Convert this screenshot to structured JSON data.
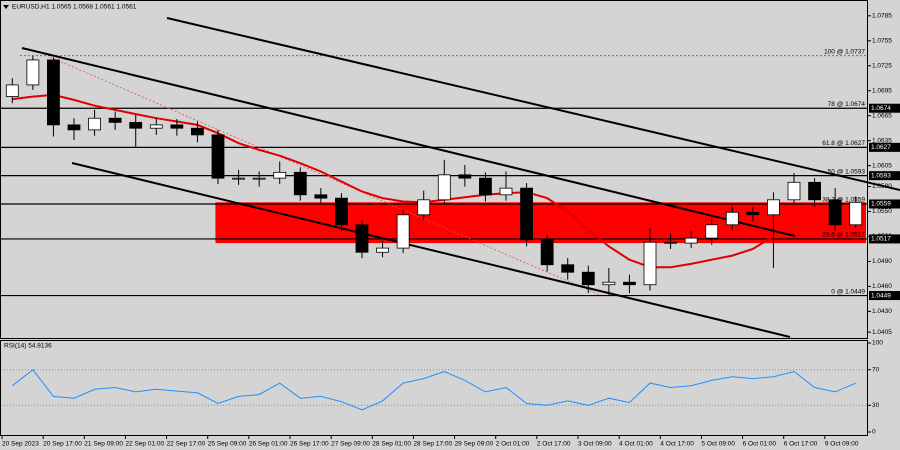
{
  "chart_data": [
    {
      "type": "candlestick",
      "title": "EURUSD,H1 1.0565 1.0568 1.0561 1.0561",
      "x": [
        4,
        12,
        20,
        28,
        36,
        44,
        52,
        60,
        68,
        76,
        84,
        92,
        100,
        108,
        116,
        124,
        132,
        140,
        148,
        156,
        164,
        172,
        180,
        188,
        196,
        204,
        212,
        220,
        228,
        236,
        244,
        252,
        260,
        268,
        276,
        284,
        292,
        300,
        308,
        316,
        324,
        332
      ],
      "open": [
        1.0688,
        1.0702,
        1.0732,
        1.0654,
        1.0648,
        1.0662,
        1.0657,
        1.065,
        1.0654,
        1.065,
        1.0642,
        1.059,
        1.059,
        1.059,
        1.0597,
        1.057,
        1.0566,
        1.0534,
        1.0501,
        1.0506,
        1.0546,
        1.0564,
        1.0594,
        1.059,
        1.057,
        1.0578,
        1.0516,
        1.0486,
        1.0477,
        1.0462,
        1.0465,
        1.0462,
        1.0513,
        1.0512,
        1.0518,
        1.0534,
        1.0549,
        1.0546,
        1.0564,
        1.0585,
        1.0564,
        1.0534
      ],
      "high": [
        1.071,
        1.0737,
        1.0735,
        1.0662,
        1.0672,
        1.067,
        1.0666,
        1.0663,
        1.0661,
        1.0658,
        1.0648,
        1.06,
        1.0598,
        1.061,
        1.0603,
        1.0578,
        1.0572,
        1.054,
        1.0515,
        1.0552,
        1.0575,
        1.0612,
        1.0606,
        1.0597,
        1.0598,
        1.0584,
        1.0522,
        1.0494,
        1.0485,
        1.0482,
        1.0474,
        1.053,
        1.0524,
        1.0527,
        1.0541,
        1.0556,
        1.0555,
        1.0573,
        1.0596,
        1.059,
        1.0578,
        1.0568
      ],
      "low": [
        1.068,
        1.0696,
        1.064,
        1.0636,
        1.0641,
        1.0648,
        1.0628,
        1.0642,
        1.0641,
        1.0633,
        1.0583,
        1.0582,
        1.058,
        1.0583,
        1.0563,
        1.0558,
        1.0526,
        1.0494,
        1.0495,
        1.05,
        1.054,
        1.0558,
        1.058,
        1.0562,
        1.0563,
        1.0508,
        1.0478,
        1.0468,
        1.0452,
        1.0449,
        1.0452,
        1.0455,
        1.0505,
        1.0506,
        1.051,
        1.0527,
        1.0538,
        1.0482,
        1.0558,
        1.0556,
        1.0527,
        1.053
      ],
      "close": [
        1.0702,
        1.0732,
        1.0654,
        1.0648,
        1.0662,
        1.0657,
        1.065,
        1.0654,
        1.065,
        1.0642,
        1.059,
        1.059,
        1.059,
        1.0597,
        1.057,
        1.0566,
        1.0534,
        1.0501,
        1.0506,
        1.0546,
        1.0564,
        1.0594,
        1.059,
        1.057,
        1.0578,
        1.0516,
        1.0486,
        1.0477,
        1.0462,
        1.0465,
        1.0462,
        1.0513,
        1.0512,
        1.0518,
        1.0534,
        1.0549,
        1.0546,
        1.0564,
        1.0585,
        1.0564,
        1.0534,
        1.0561
      ],
      "up_color": "#ffffff",
      "down_color": "#000000",
      "overlay": {
        "color": "#e00000",
        "values": [
          1.0685,
          1.0688,
          1.069,
          1.0684,
          1.0677,
          1.0672,
          1.0667,
          1.0662,
          1.0658,
          1.0654,
          1.0644,
          1.0632,
          1.0624,
          1.0617,
          1.0608,
          1.0598,
          1.0586,
          1.0574,
          1.0566,
          1.0562,
          1.0561,
          1.0564,
          1.0567,
          1.057,
          1.0572,
          1.0573,
          1.0566,
          1.055,
          1.0528,
          1.0508,
          1.0492,
          1.0483,
          1.0483,
          1.0487,
          1.0492,
          1.0497,
          1.0505,
          1.052,
          null,
          null,
          null,
          null
        ]
      },
      "zone": {
        "low": 1.0512,
        "high": 1.0561,
        "x": [
          83,
          336
        ],
        "color": "#ff0000"
      },
      "levels": [
        {
          "value": 1.0737,
          "label": "100 @ 1.0737",
          "style": "dotted"
        },
        {
          "value": 1.0674,
          "label": "78 @ 1.0674",
          "tag": "1.0674",
          "style": "solid"
        },
        {
          "value": 1.0627,
          "label": "61.8 @ 1.0627",
          "tag": "1.0627",
          "style": "solid"
        },
        {
          "value": 1.0593,
          "label": "50 @ 1.0593",
          "tag": "1.0593",
          "style": "solid"
        },
        {
          "value": 1.0559,
          "label": "38.2 @ 1.0559",
          "tag": "1.0559",
          "style": "solid"
        },
        {
          "value": 1.0517,
          "label": "23.6 @ 1.0517",
          "tag": "1.0517",
          "style": "solid"
        },
        {
          "value": 1.0449,
          "label": "0 @ 1.0449",
          "tag": "1.0449",
          "style": "solid"
        }
      ],
      "xlim": [
        0,
        336
      ],
      "ylim": [
        1.0398,
        1.0804
      ],
      "yticks": [
        {
          "value": 1.0785,
          "label": "1.0785"
        },
        {
          "value": 1.0755,
          "label": "1.0755"
        },
        {
          "value": 1.0725,
          "label": "1.0725"
        },
        {
          "value": 1.0695,
          "label": "1.0695"
        },
        {
          "value": 1.0665,
          "label": "1.0665"
        },
        {
          "value": 1.0635,
          "label": "1.0635"
        },
        {
          "value": 1.0605,
          "label": "1.0605"
        },
        {
          "value": 1.058,
          "label": "1.0580"
        },
        {
          "value": 1.055,
          "label": "1.0550"
        },
        {
          "value": 1.052,
          "label": "1.0520"
        },
        {
          "value": 1.049,
          "label": "1.0490"
        },
        {
          "value": 1.046,
          "label": "1.0460"
        },
        {
          "value": 1.043,
          "label": "1.0430"
        },
        {
          "value": 1.0405,
          "label": "1.0405"
        }
      ]
    },
    {
      "type": "line",
      "title": "RSI(14) 54.8136",
      "color": "#1e90ff",
      "x": [
        4,
        12,
        20,
        28,
        36,
        44,
        52,
        60,
        68,
        76,
        84,
        92,
        100,
        108,
        116,
        124,
        132,
        140,
        148,
        156,
        164,
        172,
        180,
        188,
        196,
        204,
        212,
        220,
        228,
        236,
        244,
        252,
        260,
        268,
        276,
        284,
        292,
        300,
        308,
        316,
        324,
        332
      ],
      "values": [
        52,
        70,
        40,
        38,
        48,
        50,
        45,
        48,
        46,
        44,
        32,
        40,
        42,
        55,
        38,
        40,
        34,
        25,
        35,
        55,
        60,
        68,
        58,
        45,
        50,
        32,
        30,
        35,
        30,
        38,
        33,
        55,
        50,
        52,
        58,
        62,
        60,
        62,
        68,
        50,
        45,
        54.81
      ],
      "xlim": [
        0,
        336
      ],
      "ylim": [
        0,
        100
      ],
      "yticks": [
        100,
        70,
        30,
        0
      ],
      "grid": true,
      "xticks": [
        {
          "value": 0,
          "label": "20 Sep 2023"
        },
        {
          "value": 16,
          "label": "20 Sep 17:00"
        },
        {
          "value": 32,
          "label": "21 Sep 09:00"
        },
        {
          "value": 48,
          "label": "22 Sep 01:00"
        },
        {
          "value": 64,
          "label": "22 Sep 17:00"
        },
        {
          "value": 80,
          "label": "25 Sep 09:00"
        },
        {
          "value": 96,
          "label": "26 Sep 01:00"
        },
        {
          "value": 112,
          "label": "26 Sep 17:00"
        },
        {
          "value": 128,
          "label": "27 Sep 09:00"
        },
        {
          "value": 144,
          "label": "28 Sep 01:00"
        },
        {
          "value": 160,
          "label": "28 Sep 17:00"
        },
        {
          "value": 176,
          "label": "29 Sep 09:00"
        },
        {
          "value": 192,
          "label": "2 Oct 01:00"
        },
        {
          "value": 208,
          "label": "2 Oct 17:00"
        },
        {
          "value": 224,
          "label": "3 Oct 09:00"
        },
        {
          "value": 240,
          "label": "4 Oct 01:00"
        },
        {
          "value": 256,
          "label": "4 Oct 17:00"
        },
        {
          "value": 272,
          "label": "5 Oct 09:00"
        },
        {
          "value": 288,
          "label": "6 Oct 01:00"
        },
        {
          "value": 304,
          "label": "6 Oct 17:00"
        },
        {
          "value": 320,
          "label": "9 Oct 09:00"
        }
      ]
    }
  ]
}
